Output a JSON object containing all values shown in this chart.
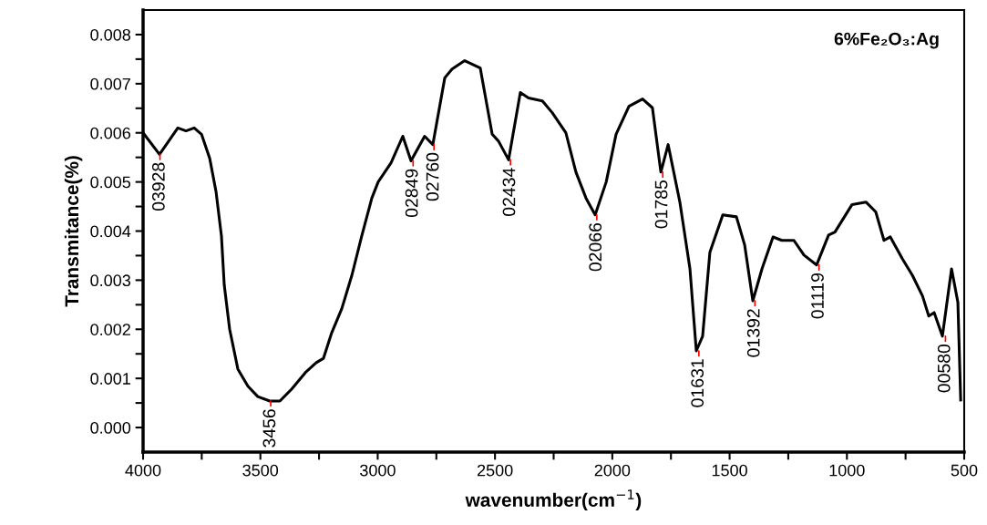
{
  "chart_data": {
    "type": "line",
    "title": "6%Fe₂O₃:Ag",
    "xlabel": "wavenumber(cm$^{−1}$)",
    "ylabel": "Transmitance(%)",
    "x": [
      4000,
      3930,
      3852,
      3817,
      3782,
      3751,
      3716,
      3689,
      3666,
      3654,
      3631,
      3596,
      3553,
      3511,
      3460,
      3417,
      3367,
      3308,
      3262,
      3231,
      3196,
      3153,
      3110,
      3068,
      3025,
      2998,
      2943,
      2893,
      2858,
      2800,
      2765,
      2714,
      2683,
      2629,
      2563,
      2512,
      2485,
      2442,
      2392,
      2357,
      2298,
      2256,
      2198,
      2155,
      2112,
      2073,
      2026,
      1984,
      1929,
      1871,
      1829,
      1793,
      1762,
      1712,
      1669,
      1642,
      1615,
      1584,
      1529,
      1471,
      1436,
      1401,
      1362,
      1315,
      1277,
      1226,
      1183,
      1129,
      1078,
      1051,
      978,
      919,
      877,
      842,
      815,
      764,
      721,
      678,
      651,
      628,
      593,
      554,
      527,
      515
    ],
    "series": [
      {
        "color": "#000000",
        "values": [
          0.006,
          0.00556,
          0.0061,
          0.00604,
          0.0061,
          0.00597,
          0.00548,
          0.0048,
          0.0039,
          0.0029,
          0.002,
          0.00119,
          0.00084,
          0.00063,
          0.00054,
          0.00054,
          0.00078,
          0.00112,
          0.00132,
          0.00141,
          0.00193,
          0.00242,
          0.0031,
          0.0039,
          0.00467,
          0.005,
          0.00539,
          0.00593,
          0.00543,
          0.00593,
          0.00576,
          0.00712,
          0.0073,
          0.00747,
          0.00732,
          0.00597,
          0.00583,
          0.00545,
          0.00682,
          0.00671,
          0.00665,
          0.00641,
          0.006,
          0.0052,
          0.00467,
          0.00433,
          0.005,
          0.00597,
          0.00654,
          0.00669,
          0.00651,
          0.0052,
          0.00576,
          0.00459,
          0.00323,
          0.00156,
          0.00186,
          0.00357,
          0.00433,
          0.00429,
          0.00372,
          0.00258,
          0.00323,
          0.00388,
          0.00381,
          0.00381,
          0.00351,
          0.00331,
          0.00392,
          0.00398,
          0.00454,
          0.00459,
          0.00439,
          0.00381,
          0.00388,
          0.00344,
          0.0031,
          0.00268,
          0.00227,
          0.00234,
          0.00186,
          0.00323,
          0.00255,
          0.00056
        ]
      }
    ],
    "xlim": [
      4000,
      500
    ],
    "xticks": [
      4000,
      {
        "value": 3750,
        "label": null
      },
      3500,
      {
        "value": 3250,
        "label": null
      },
      3000,
      {
        "value": 2750,
        "label": null
      },
      2500,
      {
        "value": 2250,
        "label": null
      },
      2000,
      {
        "value": 1750,
        "label": null
      },
      1500,
      {
        "value": 1250,
        "label": null
      },
      1000,
      {
        "value": 750,
        "label": null
      },
      500
    ],
    "ylim": [
      -0.0005,
      0.0085
    ],
    "yticks": [
      {
        "value": 0,
        "label": "0.000"
      },
      {
        "value": 0.0005,
        "label": null
      },
      {
        "value": 0.001,
        "label": "0.001"
      },
      {
        "value": 0.0015,
        "label": null
      },
      {
        "value": 0.002,
        "label": "0.002"
      },
      {
        "value": 0.0025,
        "label": null
      },
      {
        "value": 0.003,
        "label": "0.003"
      },
      {
        "value": 0.0035,
        "label": null
      },
      {
        "value": 0.004,
        "label": "0.004"
      },
      {
        "value": 0.0045,
        "label": null
      },
      {
        "value": 0.005,
        "label": "0.005"
      },
      {
        "value": 0.0055,
        "label": null
      },
      {
        "value": 0.006,
        "label": "0.006"
      },
      {
        "value": 0.0065,
        "label": null
      },
      {
        "value": 0.007,
        "label": "0.007"
      },
      {
        "value": 0.0075,
        "label": null
      },
      {
        "value": 0.008,
        "label": "0.008"
      }
    ],
    "grid": false,
    "legend": false,
    "marker": "none",
    "line_style": "solid",
    "annotations": [
      {
        "text": "03928",
        "x": 3928,
        "y": 0.00556
      },
      {
        "text": "3456",
        "x": 3456,
        "y": 0.00054
      },
      {
        "text": "02849",
        "x": 2849,
        "y": 0.00543
      },
      {
        "text": "02760",
        "x": 2760,
        "y": 0.00576
      },
      {
        "text": "02434",
        "x": 2434,
        "y": 0.00545
      },
      {
        "text": "02066",
        "x": 2066,
        "y": 0.00433
      },
      {
        "text": "01785",
        "x": 1785,
        "y": 0.0052
      },
      {
        "text": "01631",
        "x": 1631,
        "y": 0.00156
      },
      {
        "text": "01392",
        "x": 1392,
        "y": 0.00258
      },
      {
        "text": "01119",
        "x": 1119,
        "y": 0.00331
      },
      {
        "text": "00580",
        "x": 580,
        "y": 0.00186
      }
    ]
  }
}
